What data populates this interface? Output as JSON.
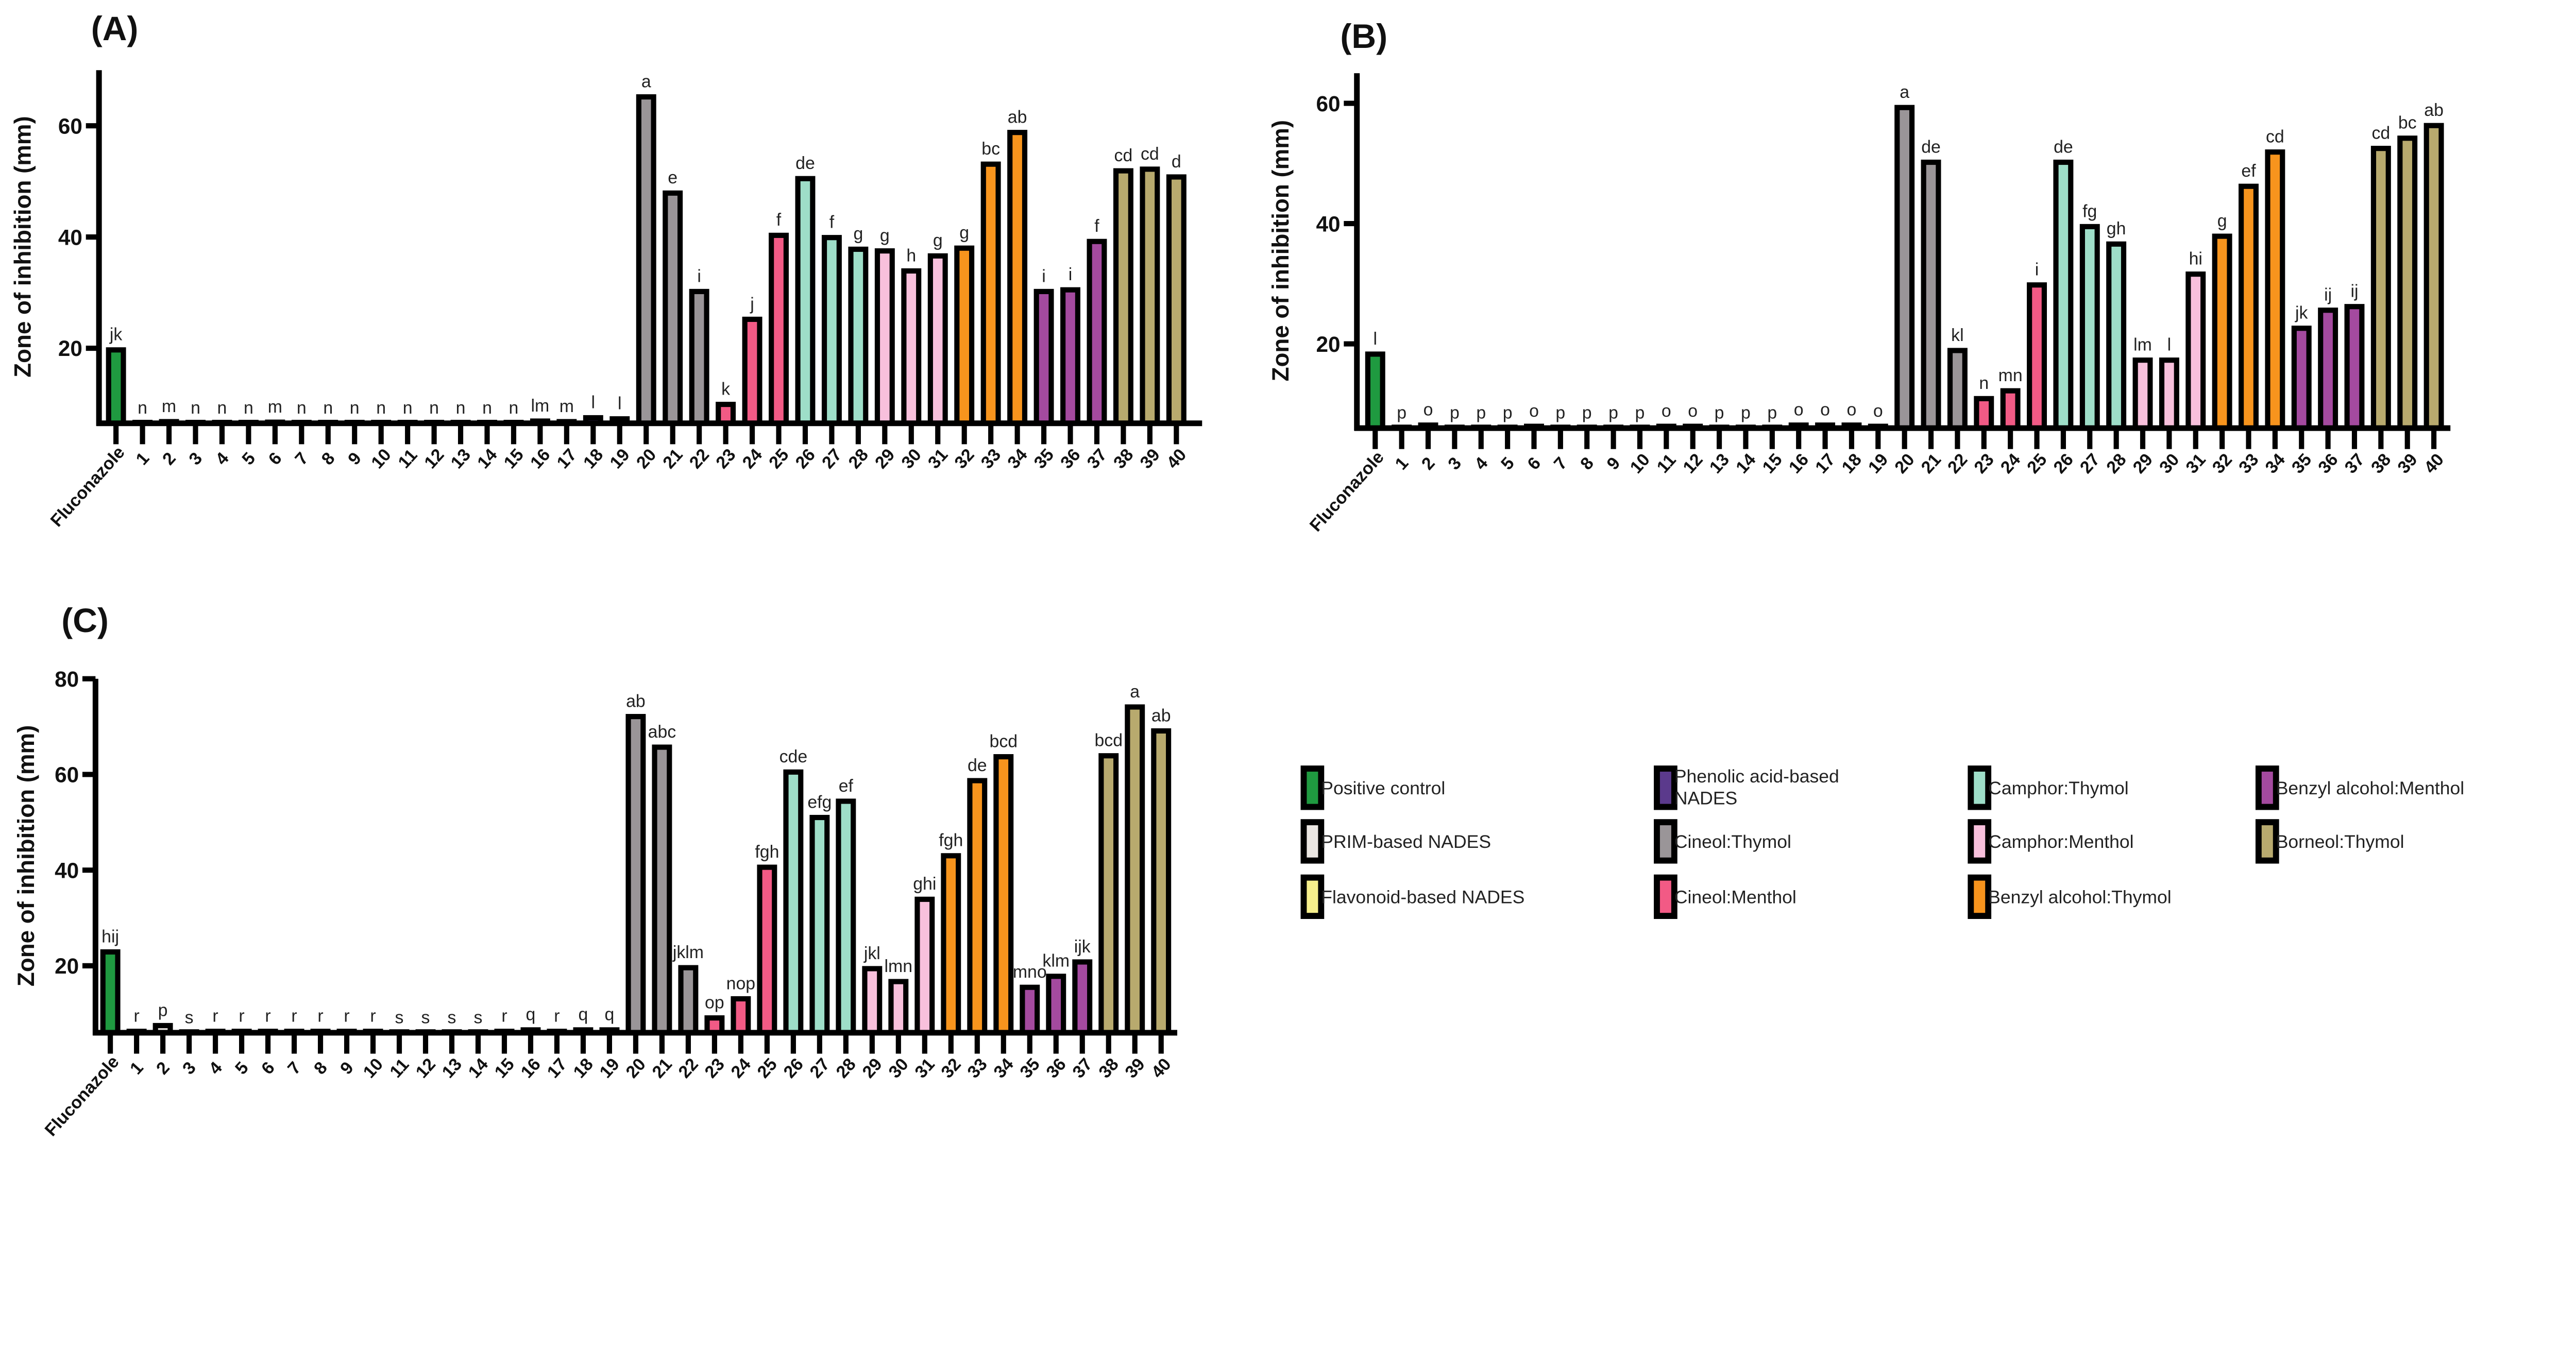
{
  "legend": [
    {
      "label": "Positive control",
      "color": "#1f9a40"
    },
    {
      "label": "PRIM-based NADES",
      "color": "#ebe7e3"
    },
    {
      "label": "Flavonoid-based NADES",
      "color": "#f6ef8c"
    },
    {
      "label": "Phenolic acid-based NADES",
      "color": "#5b3a8c"
    },
    {
      "label": "Cineol:Thymol",
      "color": "#9a9598"
    },
    {
      "label": "Cineol:Menthol",
      "color": "#f25a85"
    },
    {
      "label": "Camphor:Thymol",
      "color": "#9edec8"
    },
    {
      "label": "Camphor:Menthol",
      "color": "#f8c0dc"
    },
    {
      "label": "Benzyl alcohol:Thymol",
      "color": "#f7941d"
    },
    {
      "label": "Benzyl alcohol:Menthol",
      "color": "#a44a9f"
    },
    {
      "label": "Borneol:Thymol",
      "color": "#b8aa6e"
    }
  ],
  "chart_data": [
    {
      "type": "bar",
      "title": "(A)",
      "ylabel": "Zone of inhibition (mm)",
      "xlabel": "",
      "ylim": [
        6.5,
        70
      ],
      "yticks": [
        20,
        40,
        60
      ],
      "categories": [
        "Fluconazole",
        "1",
        "2",
        "3",
        "4",
        "5",
        "6",
        "7",
        "8",
        "9",
        "10",
        "11",
        "12",
        "13",
        "14",
        "15",
        "16",
        "17",
        "18",
        "19",
        "20",
        "21",
        "22",
        "23",
        "24",
        "25",
        "26",
        "27",
        "28",
        "29",
        "30",
        "31",
        "32",
        "33",
        "34",
        "35",
        "36",
        "37",
        "38",
        "39",
        "40"
      ],
      "values": [
        19.7,
        6.5,
        6.8,
        6.5,
        6.5,
        6.5,
        6.7,
        6.5,
        6.5,
        6.5,
        6.5,
        6.5,
        6.5,
        6.5,
        6.5,
        6.5,
        6.9,
        6.8,
        7.5,
        7.3,
        65.2,
        47.9,
        30.2,
        9.9,
        25.2,
        40.3,
        50.5,
        39.9,
        37.8,
        37.5,
        33.9,
        36.6,
        38.0,
        53.1,
        58.8,
        30.2,
        30.5,
        39.2,
        51.9,
        52.2,
        50.8
      ],
      "letters": [
        "jk",
        "n",
        "m",
        "n",
        "n",
        "n",
        "m",
        "n",
        "n",
        "n",
        "n",
        "n",
        "n",
        "n",
        "n",
        "n",
        "lm",
        "m",
        "l",
        "l",
        "a",
        "e",
        "i",
        "k",
        "j",
        "f",
        "de",
        "f",
        "g",
        "g",
        "h",
        "g",
        "g",
        "bc",
        "ab",
        "i",
        "i",
        "f",
        "cd",
        "cd",
        "d"
      ],
      "groups": [
        0,
        1,
        1,
        1,
        1,
        1,
        1,
        2,
        2,
        2,
        2,
        2,
        2,
        3,
        3,
        3,
        3,
        3,
        3,
        3,
        4,
        4,
        4,
        5,
        5,
        5,
        6,
        6,
        6,
        7,
        7,
        7,
        8,
        8,
        8,
        9,
        9,
        9,
        10,
        10,
        10
      ]
    },
    {
      "type": "bar",
      "title": "(B)",
      "ylabel": "Zone of inhibition (mm)",
      "xlabel": "",
      "ylim": [
        6,
        65
      ],
      "yticks": [
        20,
        40,
        60
      ],
      "categories": [
        "Fluconazole",
        "1",
        "2",
        "3",
        "4",
        "5",
        "6",
        "7",
        "8",
        "9",
        "10",
        "11",
        "12",
        "13",
        "14",
        "15",
        "16",
        "17",
        "18",
        "19",
        "20",
        "21",
        "22",
        "23",
        "24",
        "25",
        "26",
        "27",
        "28",
        "29",
        "30",
        "31",
        "32",
        "33",
        "34",
        "35",
        "36",
        "37",
        "38",
        "39",
        "40"
      ],
      "values": [
        18.3,
        6.0,
        6.5,
        6.0,
        6.0,
        6.0,
        6.3,
        6.0,
        6.0,
        6.0,
        6.0,
        6.3,
        6.3,
        6.0,
        6.0,
        6.0,
        6.5,
        6.5,
        6.5,
        6.3,
        59.3,
        50.2,
        18.9,
        10.9,
        12.2,
        29.8,
        50.2,
        39.5,
        36.6,
        17.3,
        17.3,
        31.6,
        37.9,
        46.2,
        51.9,
        22.6,
        25.6,
        26.2,
        52.5,
        54.2,
        56.3
      ],
      "letters": [
        "l",
        "p",
        "o",
        "p",
        "p",
        "p",
        "o",
        "p",
        "p",
        "p",
        "p",
        "o",
        "o",
        "p",
        "p",
        "p",
        "o",
        "o",
        "o",
        "o",
        "a",
        "de",
        "kl",
        "n",
        "mn",
        "i",
        "de",
        "fg",
        "gh",
        "lm",
        "l",
        "hi",
        "g",
        "ef",
        "cd",
        "jk",
        "ij",
        "ij",
        "cd",
        "bc",
        "ab"
      ],
      "groups": [
        0,
        1,
        1,
        1,
        1,
        1,
        1,
        2,
        2,
        2,
        2,
        2,
        2,
        3,
        3,
        3,
        3,
        3,
        3,
        3,
        4,
        4,
        4,
        5,
        5,
        5,
        6,
        6,
        6,
        7,
        7,
        7,
        8,
        8,
        8,
        9,
        9,
        9,
        10,
        10,
        10
      ]
    },
    {
      "type": "bar",
      "title": "(C)",
      "ylabel": "Zone of inhibition (mm)",
      "xlabel": "",
      "ylim": [
        6,
        80
      ],
      "yticks": [
        20,
        40,
        60,
        80
      ],
      "categories": [
        "Fluconazole",
        "1",
        "2",
        "3",
        "4",
        "5",
        "6",
        "7",
        "8",
        "9",
        "10",
        "11",
        "12",
        "13",
        "14",
        "15",
        "16",
        "17",
        "18",
        "19",
        "20",
        "21",
        "22",
        "23",
        "24",
        "25",
        "26",
        "27",
        "28",
        "29",
        "30",
        "31",
        "32",
        "33",
        "34",
        "35",
        "36",
        "37",
        "38",
        "39",
        "40"
      ],
      "values": [
        22.9,
        6.3,
        7.5,
        6.0,
        6.3,
        6.3,
        6.3,
        6.3,
        6.3,
        6.3,
        6.3,
        6.0,
        6.0,
        6.0,
        6.0,
        6.3,
        6.6,
        6.3,
        6.6,
        6.6,
        72.1,
        65.7,
        19.6,
        9.1,
        13.1,
        40.6,
        60.5,
        51.0,
        54.4,
        19.4,
        16.7,
        33.9,
        43.0,
        58.7,
        63.7,
        15.5,
        17.8,
        20.8,
        63.9,
        74.1,
        69.1
      ],
      "letters": [
        "hij",
        "r",
        "p",
        "s",
        "r",
        "r",
        "r",
        "r",
        "r",
        "r",
        "r",
        "s",
        "s",
        "s",
        "s",
        "r",
        "q",
        "r",
        "q",
        "q",
        "ab",
        "abc",
        "jklm",
        "op",
        "nop",
        "fgh",
        "cde",
        "efg",
        "ef",
        "jkl",
        "lmn",
        "ghi",
        "fgh",
        "de",
        "bcd",
        "mno",
        "klm",
        "ijk",
        "bcd",
        "a",
        "ab"
      ],
      "groups": [
        0,
        1,
        1,
        1,
        1,
        1,
        1,
        2,
        2,
        2,
        2,
        2,
        2,
        3,
        3,
        3,
        3,
        3,
        3,
        3,
        4,
        4,
        4,
        5,
        5,
        5,
        6,
        6,
        6,
        7,
        7,
        7,
        8,
        8,
        8,
        9,
        9,
        9,
        10,
        10,
        10
      ]
    }
  ]
}
